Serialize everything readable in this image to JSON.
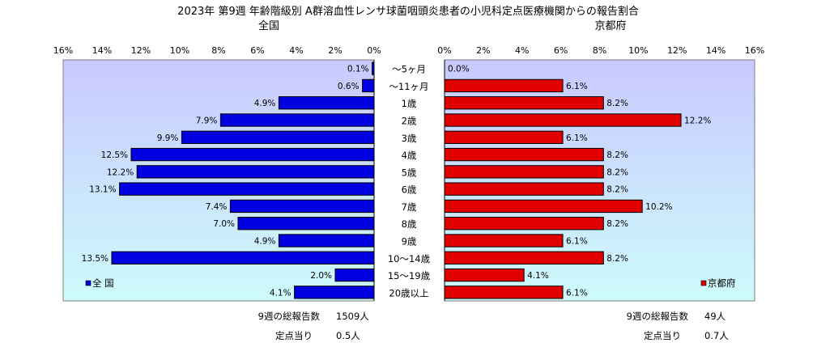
{
  "title": "2023年 第9週 年齢階級別 A群溶血性レンサ球菌咽頭炎患者の小児科定点医療機関からの報告割合",
  "chart_data": [
    {
      "type": "bar",
      "orientation": "horizontal",
      "direction": "right-to-left",
      "subtitle": "全国",
      "legend": "全 国",
      "legend_position": "bottom-left",
      "xlim": [
        0,
        16
      ],
      "x_ticks": [
        "16%",
        "14%",
        "12%",
        "10%",
        "8%",
        "6%",
        "4%",
        "2%",
        "0%"
      ],
      "color": "#0000e0",
      "categories": [
        "～5ヶ月",
        "～11ヶ月",
        "1歳",
        "2歳",
        "3歳",
        "4歳",
        "5歳",
        "6歳",
        "7歳",
        "8歳",
        "9歳",
        "10～14歳",
        "15～19歳",
        "20歳以上"
      ],
      "values": [
        0.1,
        0.6,
        4.9,
        7.9,
        9.9,
        12.5,
        12.2,
        13.1,
        7.4,
        7.0,
        4.9,
        13.5,
        2.0,
        4.1
      ],
      "labels": [
        "0.1%",
        "0.6%",
        "4.9%",
        "7.9%",
        "9.9%",
        "12.5%",
        "12.2%",
        "13.1%",
        "7.4%",
        "7.0%",
        "4.9%",
        "13.5%",
        "2.0%",
        "4.1%"
      ],
      "summary_total_label": "9週の総報告数",
      "summary_total_value": "1509人",
      "summary_per_label": "定点当り",
      "summary_per_value": "0.5人"
    },
    {
      "type": "bar",
      "orientation": "horizontal",
      "direction": "left-to-right",
      "subtitle": "京都府",
      "legend": "京都府",
      "legend_position": "bottom-right",
      "xlim": [
        0,
        16
      ],
      "x_ticks": [
        "0%",
        "2%",
        "4%",
        "6%",
        "8%",
        "10%",
        "12%",
        "14%",
        "16%"
      ],
      "color": "#e00000",
      "categories": [
        "～5ヶ月",
        "～11ヶ月",
        "1歳",
        "2歳",
        "3歳",
        "4歳",
        "5歳",
        "6歳",
        "7歳",
        "8歳",
        "9歳",
        "10～14歳",
        "15～19歳",
        "20歳以上"
      ],
      "values": [
        0.0,
        6.1,
        8.2,
        12.2,
        6.1,
        8.2,
        8.2,
        8.2,
        10.2,
        8.2,
        6.1,
        8.2,
        4.1,
        6.1
      ],
      "labels": [
        "0.0%",
        "6.1%",
        "8.2%",
        "12.2%",
        "6.1%",
        "8.2%",
        "8.2%",
        "8.2%",
        "10.2%",
        "8.2%",
        "6.1%",
        "8.2%",
        "4.1%",
        "6.1%"
      ],
      "summary_total_label": "9週の総報告数",
      "summary_total_value": "49人",
      "summary_per_label": "定点当り",
      "summary_per_value": "0.7人"
    }
  ]
}
